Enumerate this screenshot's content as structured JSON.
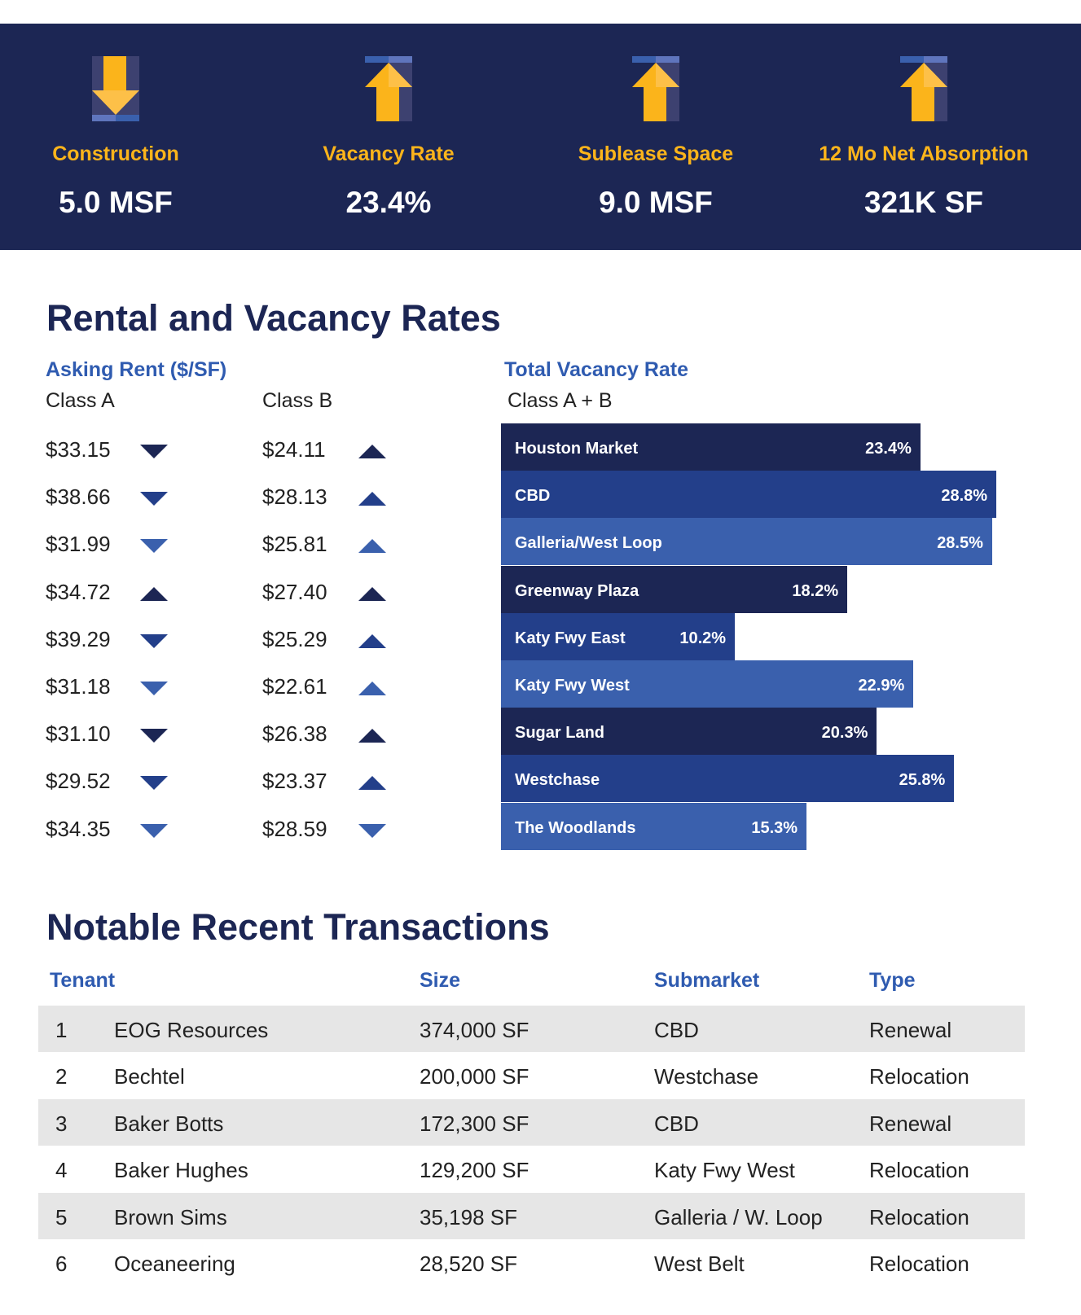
{
  "stats": [
    {
      "label": "Construction",
      "value": "5.0 MSF",
      "trend": "down",
      "icon": "arrow-down-icon"
    },
    {
      "label": "Vacancy Rate",
      "value": "23.4%",
      "trend": "up",
      "icon": "arrow-up-icon"
    },
    {
      "label": "Sublease Space",
      "value": "9.0 MSF",
      "trend": "up",
      "icon": "arrow-up-icon"
    },
    {
      "label": "12 Mo Net Absorption",
      "value": "321K SF",
      "trend": "up",
      "icon": "arrow-up-icon"
    }
  ],
  "colors": {
    "navy": "#1c2654",
    "blue": "#233f8a",
    "light_blue": "#3a60ad",
    "gold": "#fbb41b"
  },
  "rental": {
    "title": "Rental and Vacancy Rates",
    "asking_title": "Asking Rent ($/SF)",
    "class_a_label": "Class A",
    "class_b_label": "Class B",
    "vacancy_title": "Total Vacancy Rate",
    "vacancy_class_label": "Class A + B",
    "rows": [
      {
        "a": "$33.15",
        "a_trend": "down",
        "b": "$24.11",
        "b_trend": "up"
      },
      {
        "a": "$38.66",
        "a_trend": "down",
        "b": "$28.13",
        "b_trend": "up"
      },
      {
        "a": "$31.99",
        "a_trend": "down",
        "b": "$25.81",
        "b_trend": "up"
      },
      {
        "a": "$34.72",
        "a_trend": "up",
        "b": "$27.40",
        "b_trend": "up"
      },
      {
        "a": "$39.29",
        "a_trend": "down",
        "b": "$25.29",
        "b_trend": "up"
      },
      {
        "a": "$31.18",
        "a_trend": "down",
        "b": "$22.61",
        "b_trend": "up"
      },
      {
        "a": "$31.10",
        "a_trend": "down",
        "b": "$26.38",
        "b_trend": "up"
      },
      {
        "a": "$29.52",
        "a_trend": "down",
        "b": "$23.37",
        "b_trend": "up"
      },
      {
        "a": "$34.35",
        "a_trend": "down",
        "b": "$28.59",
        "b_trend": "down"
      }
    ]
  },
  "chart_data": {
    "type": "bar",
    "orientation": "horizontal",
    "title": "Total Vacancy Rate",
    "subtitle": "Class A + B",
    "categories": [
      "Houston Market",
      "CBD",
      "Galleria/West Loop",
      "Greenway Plaza",
      "Katy Fwy East",
      "Katy Fwy West",
      "Sugar Land",
      "Westchase",
      "The Woodlands"
    ],
    "values": [
      23.4,
      28.8,
      28.5,
      18.2,
      10.2,
      22.9,
      20.3,
      25.8,
      15.3
    ],
    "labels": [
      "23.4%",
      "28.8%",
      "28.5%",
      "18.2%",
      "10.2%",
      "22.9%",
      "20.3%",
      "25.8%",
      "15.3%"
    ]
  },
  "transactions": {
    "title": "Notable Recent Transactions",
    "headers": [
      "Tenant",
      "Size",
      "Submarket",
      "Type"
    ],
    "rows": [
      [
        "1",
        "EOG Resources",
        "374,000 SF",
        "CBD",
        "Renewal"
      ],
      [
        "2",
        "Bechtel",
        "200,000 SF",
        "Westchase",
        "Relocation"
      ],
      [
        "3",
        "Baker Botts",
        "172,300 SF",
        "CBD",
        "Renewal"
      ],
      [
        "4",
        "Baker Hughes",
        "129,200 SF",
        "Katy Fwy West",
        "Relocation"
      ],
      [
        "5",
        "Brown Sims",
        "35,198 SF",
        "Galleria / W. Loop",
        "Relocation"
      ],
      [
        "6",
        "Oceaneering",
        "28,520 SF",
        "West Belt",
        "Relocation"
      ]
    ]
  }
}
